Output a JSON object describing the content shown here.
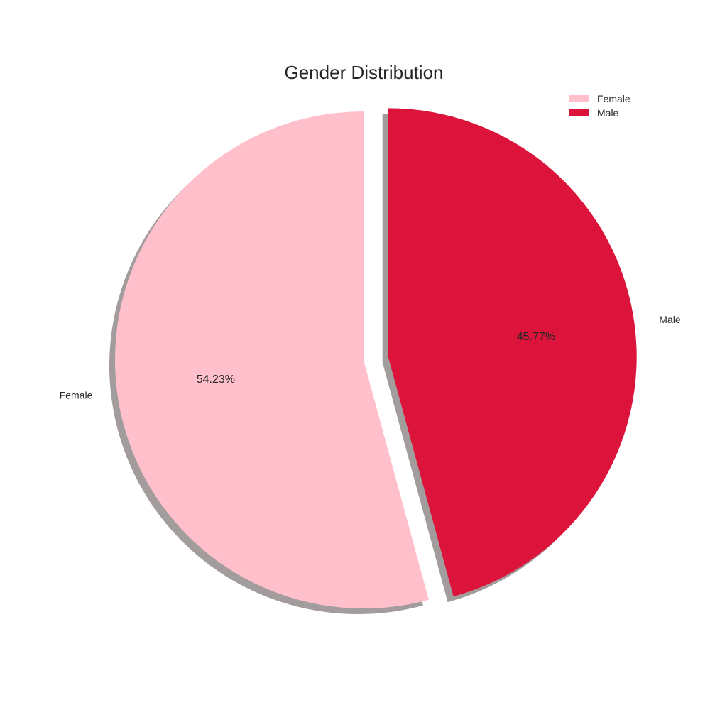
{
  "chart_data": {
    "type": "pie",
    "title": "Gender Distribution",
    "categories": [
      "Female",
      "Male"
    ],
    "values": [
      54.23,
      45.77
    ],
    "labels": [
      "Female",
      "Male"
    ],
    "percent_labels": [
      "54.23%",
      "45.77%"
    ],
    "colors": [
      "#ffc0cb",
      "#dc143c"
    ],
    "exploded": [
      false,
      true
    ],
    "shadow": true,
    "start_angle": 90,
    "legend": {
      "placement": "top-right",
      "entries": [
        "Female",
        "Male"
      ]
    }
  }
}
